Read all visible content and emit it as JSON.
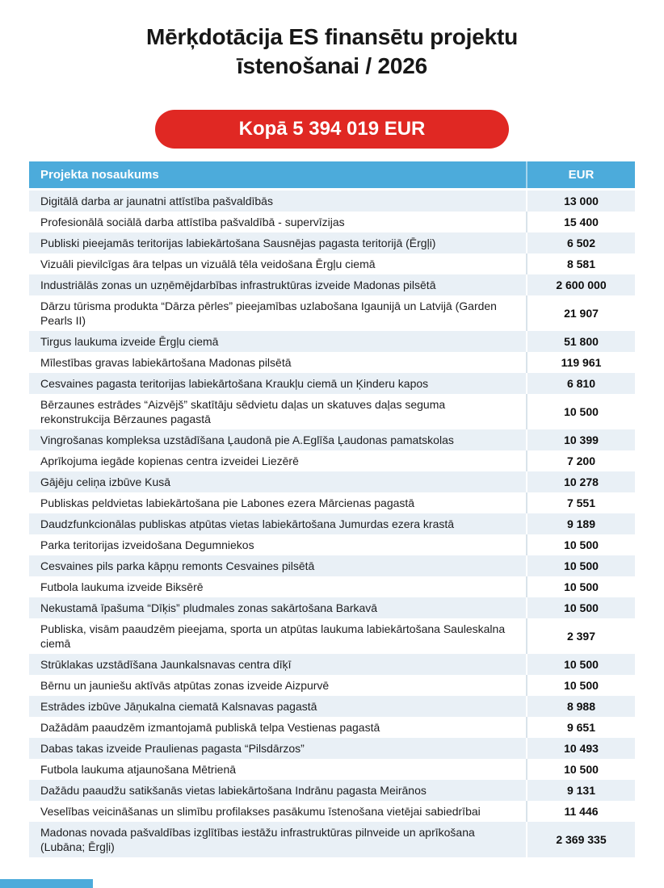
{
  "page": {
    "title_line1": "Mērķdotācija ES finansētu projektu",
    "title_line2": "īstenošanai / 2026",
    "total_badge": "Kopā 5 394 019 EUR"
  },
  "colors": {
    "header_blue": "#4cabdb",
    "badge_red": "#e02823",
    "row_alt": "#e9f0f6"
  },
  "table": {
    "columns": {
      "name": "Projekta nosaukums",
      "eur": "EUR"
    },
    "rows": [
      {
        "name": "Digitālā darba ar jaunatni attīstība pašvaldībās",
        "eur": "13 000"
      },
      {
        "name": "Profesionālā sociālā darba attīstība pašvaldībā - supervīzijas",
        "eur": "15 400"
      },
      {
        "name": "Publiski pieejamās teritorijas labiekārtošana Sausnējas pagasta teritorijā (Ērgļi)",
        "eur": "6 502"
      },
      {
        "name": "Vizuāli pievilcīgas āra telpas un vizuālā tēla veidošana Ērgļu ciemā",
        "eur": "8 581"
      },
      {
        "name": "Industriālās zonas un uzņēmējdarbības infrastruktūras izveide Madonas pilsētā",
        "eur": "2 600 000"
      },
      {
        "name": "Dārzu tūrisma produkta “Dārza pērles” pieejamības uzlabošana Igaunijā un Latvijā (Garden Pearls II)",
        "eur": "21 907"
      },
      {
        "name": "Tirgus laukuma izveide Ērgļu ciemā",
        "eur": "51 800"
      },
      {
        "name": "Mīlestības gravas labiekārtošana Madonas pilsētā",
        "eur": "119 961"
      },
      {
        "name": "Cesvaines pagasta teritorijas labiekārtošana Kraukļu ciemā un Ķinderu kapos",
        "eur": "6 810"
      },
      {
        "name": "Bērzaunes estrādes “Aizvējš” skatītāju sēdvietu daļas un skatuves daļas seguma rekonstrukcija Bērzaunes pagastā",
        "eur": "10 500"
      },
      {
        "name": "Vingrošanas kompleksa uzstādīšana Ļaudonā pie A.Eglīša Ļaudonas pamatskolas",
        "eur": "10 399"
      },
      {
        "name": "Aprīkojuma iegāde kopienas centra izveidei Liezērē",
        "eur": "7 200"
      },
      {
        "name": "Gājēju celiņa izbūve Kusā",
        "eur": "10 278"
      },
      {
        "name": "Publiskas peldvietas labiekārtošana pie Labones ezera Mārcienas pagastā",
        "eur": "7 551"
      },
      {
        "name": "Daudzfunkcionālas publiskas atpūtas vietas labiekārtošana Jumurdas ezera krastā",
        "eur": "9 189"
      },
      {
        "name": "Parka teritorijas izveidošana Degumniekos",
        "eur": "10 500"
      },
      {
        "name": "Cesvaines pils parka kāpņu remonts Cesvaines pilsētā",
        "eur": "10 500"
      },
      {
        "name": "Futbola laukuma izveide Biksērē",
        "eur": "10 500"
      },
      {
        "name": "Nekustamā īpašuma “Dīķis” pludmales zonas sakārtošana Barkavā",
        "eur": "10 500"
      },
      {
        "name": "Publiska, visām paaudzēm pieejama, sporta un atpūtas laukuma labiekārtošana Sauleskalna ciemā",
        "eur": "2 397"
      },
      {
        "name": "Strūklakas uzstādīšana Jaunkalsnavas centra dīķī",
        "eur": "10 500"
      },
      {
        "name": "Bērnu un jauniešu aktīvās atpūtas zonas izveide Aizpurvē",
        "eur": "10 500"
      },
      {
        "name": "Estrādes izbūve Jāņukalna ciematā Kalsnavas pagastā",
        "eur": "8 988"
      },
      {
        "name": "Dažādām paaudzēm izmantojamā publiskā telpa Vestienas pagastā",
        "eur": "9 651"
      },
      {
        "name": "Dabas takas izveide Praulienas pagasta “Pilsdārzos”",
        "eur": "10 493"
      },
      {
        "name": "Futbola laukuma atjaunošana Mētrienā",
        "eur": "10 500"
      },
      {
        "name": "Dažādu paaudžu satikšanās vietas labiekārtošana Indrānu pagasta Meirānos",
        "eur": "9 131"
      },
      {
        "name": "Veselības veicināšanas un slimību profilakses pasākumu īstenošana vietējai sabiedrībai",
        "eur": "11 446"
      },
      {
        "name": "Madonas novada pašvaldības izglītības iestāžu infrastruktūras pilnveide un aprīkošana (Lubāna; Ērgļi)",
        "eur": "2 369 335"
      }
    ]
  }
}
